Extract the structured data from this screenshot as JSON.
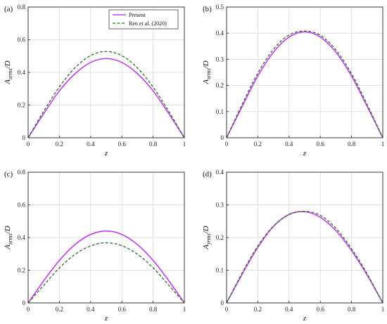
{
  "legend": {
    "items": [
      {
        "label": "Present",
        "color": "#bf40e6",
        "dash": "solid"
      },
      {
        "label": "Ren et al. (2020)",
        "color": "#2e6b2e",
        "dash": "dashed"
      }
    ],
    "placement": "top-center of panel (a)"
  },
  "chart_data": [
    {
      "type": "line",
      "panel_label": "(a)",
      "xlabel": "z",
      "ylabel_main": "A",
      "ylabel_sub": "xrms",
      "ylabel_suffix": "/D",
      "xlim": [
        0,
        1
      ],
      "ylim": [
        0,
        0.8
      ],
      "xticks": [
        0,
        0.2,
        0.4,
        0.6,
        0.8,
        1
      ],
      "yticks": [
        0,
        0.2,
        0.4,
        0.6,
        0.8
      ],
      "xtick_labels": [
        "0",
        "0.2",
        "0.4",
        "0.6",
        "0.8",
        "1"
      ],
      "ytick_labels": [
        "0",
        "0.2",
        "0.4",
        "0.6",
        "0.8"
      ],
      "grid": true,
      "series": [
        {
          "name": "Present",
          "x": [
            0,
            0.1,
            0.2,
            0.3,
            0.4,
            0.5,
            0.6,
            0.7,
            0.8,
            0.9,
            1
          ],
          "values": [
            0,
            0.148,
            0.287,
            0.392,
            0.461,
            0.485,
            0.461,
            0.392,
            0.287,
            0.148,
            0
          ]
        },
        {
          "name": "Ren et al. (2020)",
          "x": [
            0,
            0.1,
            0.2,
            0.3,
            0.4,
            0.5,
            0.6,
            0.7,
            0.8,
            0.9,
            1
          ],
          "values": [
            0,
            0.163,
            0.311,
            0.428,
            0.503,
            0.528,
            0.502,
            0.427,
            0.31,
            0.162,
            0
          ]
        }
      ]
    },
    {
      "type": "line",
      "panel_label": "(b)",
      "xlabel": "z",
      "ylabel_main": "A",
      "ylabel_sub": "xrms",
      "ylabel_suffix": "/D",
      "xlim": [
        0,
        1
      ],
      "ylim": [
        0,
        0.5
      ],
      "xticks": [
        0,
        0.2,
        0.4,
        0.6,
        0.8,
        1
      ],
      "yticks": [
        0,
        0.1,
        0.2,
        0.3,
        0.4,
        0.5
      ],
      "xtick_labels": [
        "0",
        "0.2",
        "0.4",
        "0.6",
        "0.8",
        "1"
      ],
      "ytick_labels": [
        "0",
        "0.1",
        "0.2",
        "0.3",
        "0.4",
        "0.5"
      ],
      "grid": true,
      "series": [
        {
          "name": "Present",
          "x": [
            0,
            0.1,
            0.2,
            0.3,
            0.4,
            0.5,
            0.6,
            0.7,
            0.8,
            0.9,
            1
          ],
          "values": [
            0,
            0.12,
            0.236,
            0.327,
            0.385,
            0.405,
            0.385,
            0.327,
            0.236,
            0.12,
            0
          ]
        },
        {
          "name": "Ren et al. (2020)",
          "x": [
            0,
            0.1,
            0.2,
            0.3,
            0.4,
            0.5,
            0.6,
            0.7,
            0.8,
            0.9,
            1
          ],
          "values": [
            0,
            0.128,
            0.247,
            0.338,
            0.393,
            0.408,
            0.392,
            0.336,
            0.245,
            0.127,
            0
          ]
        }
      ]
    },
    {
      "type": "line",
      "panel_label": "(c)",
      "xlabel": "z",
      "ylabel_main": "A",
      "ylabel_sub": "xrms",
      "ylabel_suffix": "/D",
      "xlim": [
        0,
        1
      ],
      "ylim": [
        0,
        0.8
      ],
      "xticks": [
        0,
        0.2,
        0.4,
        0.6,
        0.8,
        1
      ],
      "yticks": [
        0,
        0.2,
        0.4,
        0.6,
        0.8
      ],
      "xtick_labels": [
        "0",
        "0.2",
        "0.4",
        "0.6",
        "0.8",
        "1"
      ],
      "ytick_labels": [
        "0",
        "0.2",
        "0.4",
        "0.6",
        "0.8"
      ],
      "grid": true,
      "series": [
        {
          "name": "Present",
          "x": [
            0,
            0.1,
            0.2,
            0.3,
            0.4,
            0.5,
            0.6,
            0.7,
            0.8,
            0.9,
            1
          ],
          "values": [
            0,
            0.136,
            0.26,
            0.357,
            0.419,
            0.44,
            0.419,
            0.357,
            0.26,
            0.136,
            0
          ]
        },
        {
          "name": "Ren et al. (2020)",
          "x": [
            0,
            0.1,
            0.2,
            0.3,
            0.4,
            0.5,
            0.6,
            0.7,
            0.8,
            0.9,
            1
          ],
          "values": [
            0,
            0.108,
            0.214,
            0.297,
            0.349,
            0.368,
            0.35,
            0.298,
            0.215,
            0.109,
            0
          ]
        }
      ]
    },
    {
      "type": "line",
      "panel_label": "(d)",
      "xlabel": "z",
      "ylabel_main": "A",
      "ylabel_sub": "yrms",
      "ylabel_suffix": "/D",
      "xlim": [
        0,
        1
      ],
      "ylim": [
        0,
        0.4
      ],
      "xticks": [
        0,
        0.2,
        0.4,
        0.6,
        0.8,
        1
      ],
      "yticks": [
        0,
        0.1,
        0.2,
        0.3,
        0.4
      ],
      "xtick_labels": [
        "0",
        "0.2",
        "0.4",
        "0.6",
        "0.8",
        "1"
      ],
      "ytick_labels": [
        "0",
        "0.1",
        "0.2",
        "0.3",
        "0.4"
      ],
      "grid": true,
      "series": [
        {
          "name": "Present",
          "x": [
            0,
            0.1,
            0.2,
            0.3,
            0.4,
            0.5,
            0.6,
            0.7,
            0.8,
            0.9,
            1
          ],
          "values": [
            0,
            0.088,
            0.17,
            0.234,
            0.271,
            0.279,
            0.262,
            0.221,
            0.16,
            0.085,
            0
          ]
        },
        {
          "name": "Ren et al. (2020)",
          "x": [
            0,
            0.1,
            0.2,
            0.3,
            0.4,
            0.5,
            0.6,
            0.7,
            0.8,
            0.9,
            1
          ],
          "values": [
            0,
            0.092,
            0.174,
            0.235,
            0.27,
            0.28,
            0.268,
            0.228,
            0.166,
            0.089,
            0
          ]
        }
      ]
    }
  ]
}
